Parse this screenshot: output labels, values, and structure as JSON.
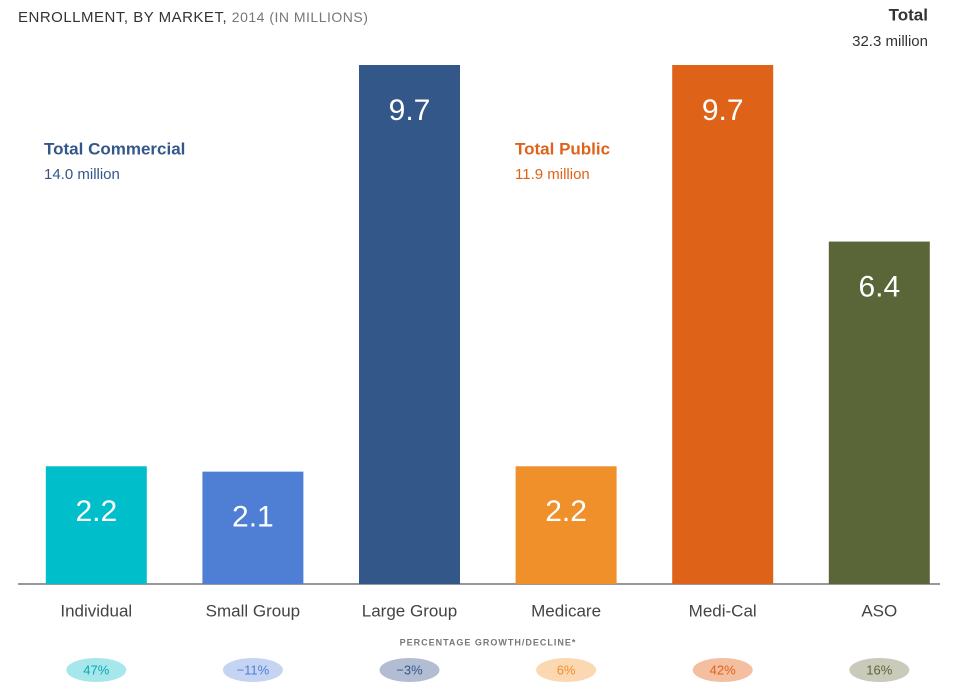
{
  "chart_data": {
    "type": "bar",
    "title": "ENROLLMENT, BY MARKET,",
    "subtitle": "2014 (IN MILLIONS)",
    "total": {
      "label": "Total",
      "value_text": "32.3 million"
    },
    "annotations": [
      {
        "label": "Total Commercial",
        "value_text": "14.0 million",
        "color": "#34578a"
      },
      {
        "label": "Total Public",
        "value_text": "11.9 million",
        "color": "#de6319"
      }
    ],
    "categories": [
      "Individual",
      "Small Group",
      "Large Group",
      "Medicare",
      "Medi-Cal",
      "ASO"
    ],
    "values": [
      2.2,
      2.1,
      9.7,
      2.2,
      9.7,
      6.4
    ],
    "colors": [
      "#00bfcb",
      "#4f7fd4",
      "#34578a",
      "#ef902a",
      "#de6319",
      "#5a6538"
    ],
    "ylim": [
      0,
      9.7
    ],
    "growth": {
      "label": "PERCENTAGE GROWTH/DECLINE*",
      "values": [
        47,
        -11,
        -3,
        6,
        42,
        16
      ],
      "value_labels": [
        "47%",
        "−11%",
        "−3%",
        "6%",
        "42%",
        "16%"
      ],
      "pill_colors": [
        "#a6e7ec",
        "#c6d4f3",
        "#b2bdd3",
        "#fbd8b2",
        "#f4bea0",
        "#c9cab9"
      ],
      "text_colors": [
        "#0aa6b2",
        "#4f7fd4",
        "#34578a",
        "#ef902a",
        "#de6319",
        "#5a6538"
      ]
    }
  }
}
